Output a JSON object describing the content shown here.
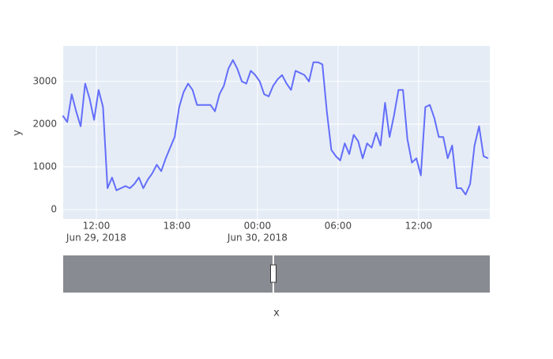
{
  "chart_data": {
    "type": "line",
    "x_label": "x",
    "y_label": "y",
    "x": [
      "2018-06-29 09:30",
      "2018-06-29 09:50",
      "2018-06-29 10:10",
      "2018-06-29 10:30",
      "2018-06-29 10:50",
      "2018-06-29 11:10",
      "2018-06-29 11:30",
      "2018-06-29 11:50",
      "2018-06-29 12:10",
      "2018-06-29 12:30",
      "2018-06-29 12:50",
      "2018-06-29 13:10",
      "2018-06-29 13:30",
      "2018-06-29 13:50",
      "2018-06-29 14:10",
      "2018-06-29 14:30",
      "2018-06-29 14:50",
      "2018-06-29 15:10",
      "2018-06-29 15:30",
      "2018-06-29 15:50",
      "2018-06-29 16:10",
      "2018-06-29 16:30",
      "2018-06-29 16:50",
      "2018-06-29 17:10",
      "2018-06-29 17:30",
      "2018-06-29 17:50",
      "2018-06-29 18:10",
      "2018-06-29 18:30",
      "2018-06-29 18:50",
      "2018-06-29 19:10",
      "2018-06-29 19:30",
      "2018-06-29 19:50",
      "2018-06-29 20:10",
      "2018-06-29 20:30",
      "2018-06-29 20:50",
      "2018-06-29 21:10",
      "2018-06-29 21:30",
      "2018-06-29 21:50",
      "2018-06-29 22:10",
      "2018-06-29 22:30",
      "2018-06-29 22:50",
      "2018-06-29 23:10",
      "2018-06-29 23:30",
      "2018-06-29 23:50",
      "2018-06-30 00:10",
      "2018-06-30 00:30",
      "2018-06-30 00:50",
      "2018-06-30 01:10",
      "2018-06-30 01:30",
      "2018-06-30 01:50",
      "2018-06-30 02:10",
      "2018-06-30 02:30",
      "2018-06-30 02:50",
      "2018-06-30 03:10",
      "2018-06-30 03:30",
      "2018-06-30 03:50",
      "2018-06-30 04:10",
      "2018-06-30 04:30",
      "2018-06-30 04:50",
      "2018-06-30 05:10",
      "2018-06-30 05:30",
      "2018-06-30 05:50",
      "2018-06-30 06:10",
      "2018-06-30 06:30",
      "2018-06-30 06:50",
      "2018-06-30 07:10",
      "2018-06-30 07:30",
      "2018-06-30 07:50",
      "2018-06-30 08:10",
      "2018-06-30 08:30",
      "2018-06-30 08:50",
      "2018-06-30 09:10",
      "2018-06-30 09:30",
      "2018-06-30 09:50",
      "2018-06-30 10:10",
      "2018-06-30 10:30",
      "2018-06-30 10:50",
      "2018-06-30 11:10",
      "2018-06-30 11:30",
      "2018-06-30 11:50",
      "2018-06-30 12:10",
      "2018-06-30 12:30",
      "2018-06-30 12:50",
      "2018-06-30 13:10",
      "2018-06-30 13:30",
      "2018-06-30 13:50",
      "2018-06-30 14:10",
      "2018-06-30 14:30",
      "2018-06-30 14:50",
      "2018-06-30 15:10",
      "2018-06-30 15:30",
      "2018-06-30 15:50",
      "2018-06-30 16:10",
      "2018-06-30 16:30",
      "2018-06-30 16:50",
      "2018-06-30 17:10"
    ],
    "series": [
      {
        "color": "#636efa",
        "values": [
          2200,
          2050,
          2700,
          2300,
          1950,
          2950,
          2600,
          2100,
          2800,
          2400,
          500,
          750,
          450,
          500,
          550,
          500,
          600,
          750,
          500,
          700,
          850,
          1050,
          900,
          1200,
          1450,
          1700,
          2400,
          2750,
          2950,
          2800,
          2450,
          2450,
          2450,
          2450,
          2300,
          2700,
          2900,
          3300,
          3500,
          3300,
          3000,
          2950,
          3250,
          3150,
          3000,
          2700,
          2650,
          2900,
          3050,
          3150,
          2950,
          2800,
          3250,
          3200,
          3150,
          3000,
          3450,
          3450,
          3400,
          2300,
          1400,
          1250,
          1150,
          1550,
          1300,
          1750,
          1600,
          1200,
          1550,
          1450,
          1800,
          1500,
          2500,
          1700,
          2200,
          2800,
          2800,
          1650,
          1100,
          1200,
          800,
          2400,
          2450,
          2150,
          1700,
          1700,
          1200,
          1500,
          500,
          500,
          350,
          600,
          1500,
          1950,
          1250,
          1200
        ]
      }
    ],
    "xlim": [
      "2018-06-29 09:32",
      "2018-06-30 17:18"
    ],
    "xticks": [
      {
        "value": "2018-06-29 12:00",
        "label": "12:00",
        "date": "Jun 29, 2018"
      },
      {
        "value": "2018-06-29 18:00",
        "label": "18:00"
      },
      {
        "value": "2018-06-30 00:00",
        "label": "00:00",
        "date": "Jun 30, 2018"
      },
      {
        "value": "2018-06-30 06:00",
        "label": "06:00"
      },
      {
        "value": "2018-06-30 12:00",
        "label": "12:00"
      }
    ],
    "ylim": [
      -222,
      3833
    ],
    "yticks": [
      0,
      1000,
      2000,
      3000
    ],
    "grid": true,
    "rangeslider": true
  }
}
